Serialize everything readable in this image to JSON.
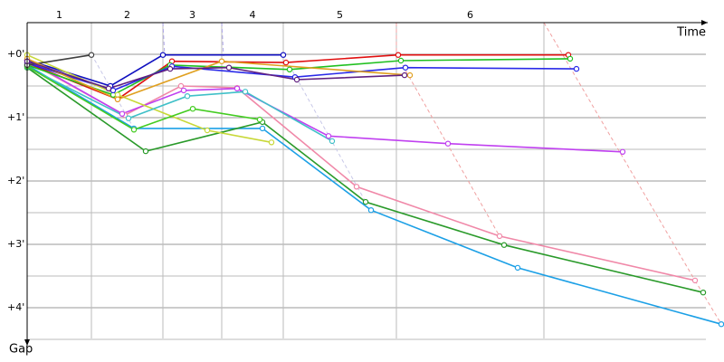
{
  "chart_data": {
    "type": "line",
    "x_label": "Time",
    "y_label": "Gap",
    "xlim": [
      0,
      750
    ],
    "ylim": [
      -0.5,
      4.6
    ],
    "lap_labels": [
      "1",
      "2",
      "3",
      "4",
      "5",
      "6"
    ],
    "lap_bounds": [
      0,
      71,
      150,
      215,
      283,
      408,
      571
    ],
    "yticks": [
      {
        "value": 0,
        "label": "+0'"
      },
      {
        "value": 1,
        "label": "+1'"
      },
      {
        "value": 2,
        "label": "+2'"
      },
      {
        "value": 3,
        "label": "+3'"
      },
      {
        "value": 4,
        "label": "+4'"
      }
    ],
    "minor_grid": [
      0.5,
      1.5,
      2.5,
      3.5,
      4.5
    ],
    "series": [
      {
        "color": "#1ca0e6",
        "x": [
          0,
          118,
          260,
          380,
          542,
          767
        ],
        "values": [
          0.17,
          1.17,
          1.17,
          2.46,
          3.37,
          4.26
        ]
      },
      {
        "color": "#2a9a2a",
        "x": [
          0,
          131,
          260,
          374,
          527,
          747
        ],
        "values": [
          0.21,
          1.53,
          1.07,
          2.33,
          3.01,
          3.76
        ]
      },
      {
        "color": "#f088a8",
        "x": [
          0,
          108,
          170,
          232,
          364,
          522,
          738
        ],
        "values": [
          0.11,
          0.96,
          0.5,
          0.53,
          2.09,
          2.87,
          3.57
        ]
      },
      {
        "color": "#c040f0",
        "x": [
          0,
          105,
          173,
          232,
          333,
          465,
          658
        ],
        "values": [
          0.09,
          0.94,
          0.57,
          0.54,
          1.29,
          1.41,
          1.54
        ]
      },
      {
        "color": "#e01010",
        "x": [
          0,
          100,
          160,
          286,
          410,
          598
        ],
        "values": [
          0.14,
          0.71,
          0.11,
          0.13,
          0.01,
          0.01
        ]
      },
      {
        "color": "#20c020",
        "x": [
          0,
          95,
          158,
          290,
          413,
          600
        ],
        "values": [
          0.17,
          0.64,
          0.17,
          0.24,
          0.1,
          0.07
        ]
      },
      {
        "color": "#1010c0",
        "x": [
          0,
          92,
          150,
          283
        ],
        "values": [
          0.09,
          0.5,
          0.01,
          0.01
        ]
      },
      {
        "color": "#2a2ae8",
        "x": [
          0,
          95,
          160,
          296,
          418,
          607
        ],
        "values": [
          0.14,
          0.57,
          0.19,
          0.36,
          0.21,
          0.23
        ]
      },
      {
        "color": "#c8d838",
        "x": [
          0,
          100,
          199,
          270
        ],
        "values": [
          0.01,
          0.64,
          1.2,
          1.39
        ]
      },
      {
        "color": "#40c0c8",
        "x": [
          0,
          112,
          177,
          241,
          337
        ],
        "values": [
          0.2,
          1.01,
          0.66,
          0.59,
          1.37
        ]
      },
      {
        "color": "#44cc22",
        "x": [
          0,
          118,
          183,
          257
        ],
        "values": [
          0.19,
          1.19,
          0.86,
          1.03
        ]
      },
      {
        "color": "#404040",
        "x": [
          0,
          71
        ],
        "values": [
          0.17,
          0.01
        ]
      },
      {
        "color": "#e0a020",
        "x": [
          0,
          100,
          215,
          423
        ],
        "values": [
          0.07,
          0.71,
          0.11,
          0.33
        ]
      },
      {
        "color": "#602080",
        "x": [
          0,
          90,
          158,
          223,
          298,
          417
        ],
        "values": [
          0.11,
          0.54,
          0.23,
          0.21,
          0.4,
          0.33
        ]
      }
    ]
  }
}
